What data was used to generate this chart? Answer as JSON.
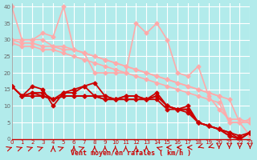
{
  "x": [
    0,
    1,
    2,
    3,
    4,
    5,
    6,
    7,
    8,
    9,
    10,
    11,
    12,
    13,
    14,
    15,
    16,
    17,
    18,
    19,
    20,
    21,
    22,
    23
  ],
  "lines": [
    {
      "y": [
        40,
        30,
        30,
        32,
        31,
        40,
        27,
        26,
        20,
        20,
        20,
        20,
        35,
        32,
        35,
        30,
        20,
        19,
        22,
        13,
        9,
        6,
        6,
        5
      ],
      "color": "#ffaaaa",
      "lw": 1.2,
      "marker": "D",
      "ms": 2.5,
      "zorder": 2
    },
    {
      "y": [
        30,
        30,
        30,
        30,
        28,
        28,
        27,
        26,
        25,
        24,
        23,
        22,
        21,
        20,
        19,
        18,
        17,
        16,
        15,
        14,
        13,
        5,
        5,
        6
      ],
      "color": "#ffaaaa",
      "lw": 1.2,
      "marker": "D",
      "ms": 2.5,
      "zorder": 2
    },
    {
      "y": [
        30,
        29,
        29,
        28,
        28,
        27,
        27,
        26,
        25,
        24,
        23,
        22,
        21,
        20,
        19,
        18,
        17,
        16,
        15,
        14,
        13,
        12,
        5,
        5
      ],
      "color": "#ffaaaa",
      "lw": 1.2,
      "marker": "D",
      "ms": 2.5,
      "zorder": 2
    },
    {
      "y": [
        29,
        28,
        28,
        27,
        27,
        26,
        25,
        24,
        23,
        22,
        21,
        20,
        19,
        18,
        17,
        16,
        15,
        14,
        13,
        12,
        11,
        5,
        5,
        1
      ],
      "color": "#ffaaaa",
      "lw": 1.2,
      "marker": "D",
      "ms": 2.5,
      "zorder": 2
    },
    {
      "y": [
        16,
        13,
        16,
        15,
        10,
        14,
        15,
        16,
        17,
        13,
        12,
        13,
        13,
        12,
        14,
        10,
        9,
        10,
        5,
        4,
        3,
        2,
        1,
        2
      ],
      "color": "#cc0000",
      "lw": 1.3,
      "marker": "D",
      "ms": 2.5,
      "zorder": 3
    },
    {
      "y": [
        16,
        13,
        14,
        14,
        12,
        14,
        14,
        16,
        13,
        13,
        12,
        13,
        13,
        12,
        13,
        10,
        9,
        9,
        5,
        4,
        3,
        2,
        0,
        2
      ],
      "color": "#cc0000",
      "lw": 1.3,
      "marker": "D",
      "ms": 2.5,
      "zorder": 3
    },
    {
      "y": [
        16,
        13,
        14,
        13,
        12,
        13,
        13,
        13,
        13,
        12,
        12,
        12,
        12,
        12,
        13,
        10,
        9,
        9,
        5,
        4,
        3,
        1,
        0,
        2
      ],
      "color": "#cc0000",
      "lw": 1.3,
      "marker": "D",
      "ms": 2.5,
      "zorder": 3
    },
    {
      "y": [
        16,
        13,
        13,
        13,
        12,
        13,
        13,
        13,
        13,
        12,
        12,
        12,
        12,
        12,
        12,
        9,
        9,
        8,
        5,
        4,
        3,
        1,
        0,
        2
      ],
      "color": "#cc0000",
      "lw": 1.3,
      "marker": "D",
      "ms": 2.5,
      "zorder": 3
    }
  ],
  "xlabel": "Vent moyen/en rafales ( km/h )",
  "background_color": "#b2ebeb",
  "grid_color": "#ffffff",
  "xlim": [
    0,
    23
  ],
  "ylim": [
    0,
    41
  ],
  "yticks": [
    0,
    5,
    10,
    15,
    20,
    25,
    30,
    35,
    40
  ],
  "xticks": [
    0,
    1,
    2,
    3,
    4,
    5,
    6,
    7,
    8,
    9,
    10,
    11,
    12,
    13,
    14,
    15,
    16,
    17,
    18,
    19,
    20,
    21,
    22,
    23
  ],
  "wind_arrows": {
    "angles": [
      45,
      45,
      45,
      45,
      0,
      45,
      0,
      45,
      0,
      0,
      0,
      0,
      0,
      0,
      315,
      270,
      270,
      270,
      225,
      225,
      180,
      180,
      180,
      180
    ],
    "color": "#cc0000"
  }
}
